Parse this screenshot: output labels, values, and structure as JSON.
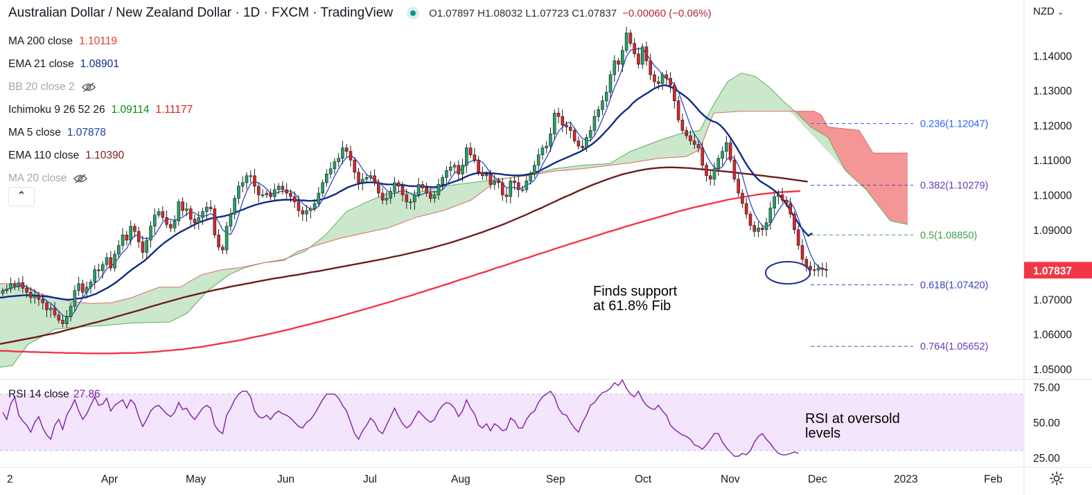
{
  "header": {
    "title": "Australian Dollar / New Zealand Dollar · 1D · FXCM · TradingView",
    "ohlc": "O1.07897 H1.08032 L1.07723 C1.07837",
    "change": "−0.00060 (−0.06%)"
  },
  "legend": [
    {
      "label": "MA 200 close",
      "value": "1.10119",
      "color": "#e53935",
      "hidden": false
    },
    {
      "label": "EMA 21 close",
      "value": "1.08901",
      "color": "#0d2a8a",
      "hidden": false
    },
    {
      "label": "BB 20 close 2",
      "value": "",
      "color": "#a3a6af",
      "hidden": true
    },
    {
      "label": "Ichimoku 9 26 52 26",
      "value": "1.09114",
      "value2": "1.11177",
      "color": "#0f8a0f",
      "color2": "#e01a1a",
      "hidden": false
    },
    {
      "label": "MA 5 close",
      "value": "1.07878",
      "color": "#1a3fa5",
      "hidden": false
    },
    {
      "label": "EMA 110 close",
      "value": "1.10390",
      "color": "#7a1e1e",
      "hidden": false
    },
    {
      "label": "MA 20 close",
      "value": "",
      "color": "#a3a6af",
      "hidden": true
    }
  ],
  "currency_label": "NZD",
  "rsi": {
    "label": "RSI 14 close",
    "value": "27.86",
    "ticks": [
      "75.00",
      "50.00",
      "25.00"
    ]
  },
  "price_axis": {
    "ticks": [
      "1.14000",
      "1.13000",
      "1.12000",
      "1.11000",
      "1.10000",
      "1.09000",
      "1.07000",
      "1.06000",
      "1.05000"
    ],
    "last_price": "1.07837"
  },
  "time_axis": [
    "2",
    "Apr",
    "May",
    "Jun",
    "Jul",
    "Aug",
    "Sep",
    "Oct",
    "Nov",
    "Dec",
    "2023",
    "Feb"
  ],
  "fib_levels": [
    {
      "label": "0.236(1.12047)",
      "value": 1.12047,
      "color": "#2962ff"
    },
    {
      "label": "0.382(1.10279)",
      "value": 1.10279,
      "color": "#673ab7"
    },
    {
      "label": "0.5(1.08850)",
      "value": 1.0885,
      "color": "#43a047"
    },
    {
      "label": "0.618(1.07420)",
      "value": 1.0742,
      "color": "#3f3fbf"
    },
    {
      "label": "0.764(1.05652)",
      "value": 1.05652,
      "color": "#673ab7"
    }
  ],
  "annotations": {
    "support_line1": "Finds support",
    "support_line2": "at 61.8% Fib",
    "rsi_line1": "RSI at oversold",
    "rsi_line2": "levels"
  },
  "colors": {
    "up": "#26a169",
    "down": "#d8262e",
    "ma200": "#f23645",
    "ema21": "#0d2a8a",
    "ma5": "#2d49c8",
    "ema110": "#6b1d1d",
    "rsi": "#7e1fa3",
    "cloud_green": "#a5d6a7",
    "cloud_red": "#ef9a9a"
  },
  "chart_data": {
    "type": "candlestick",
    "title": "Australian Dollar / New Zealand Dollar · 1D · FXCM",
    "ylim": [
      1.045,
      1.148
    ],
    "rsi_ylim": [
      20,
      82
    ],
    "close": [
      1.0725,
      1.073,
      1.0745,
      1.0738,
      1.0748,
      1.0732,
      1.072,
      1.0705,
      1.071,
      1.07,
      1.069,
      1.067,
      1.0675,
      1.0655,
      1.064,
      1.063,
      1.065,
      1.068,
      1.0725,
      1.0745,
      1.072,
      1.0735,
      1.075,
      1.0785,
      1.0782,
      1.08,
      1.082,
      1.079,
      1.083,
      1.0855,
      1.0885,
      1.087,
      1.091,
      1.0895,
      1.0865,
      1.0835,
      1.087,
      1.091,
      1.0942,
      1.0952,
      1.0935,
      1.0915,
      1.0905,
      1.0925,
      1.098,
      1.0955,
      1.096,
      1.093,
      1.092,
      1.0935,
      1.0952,
      1.0965,
      1.096,
      1.0885,
      1.085,
      1.0842,
      1.091,
      1.0945,
      1.099,
      1.1025,
      1.1035,
      1.1055,
      1.1055,
      1.1025,
      1.1,
      1.1,
      1.1005,
      1.0995,
      1.1015,
      1.1025,
      1.1015,
      1.1005,
      1.0995,
      1.098,
      1.0955,
      1.0945,
      1.0955,
      1.096,
      1.0975,
      1.1005,
      1.1035,
      1.106,
      1.1075,
      1.1095,
      1.1105,
      1.1135,
      1.1125,
      1.11,
      1.1065,
      1.1035,
      1.1045,
      1.105,
      1.1055,
      1.1035,
      1.1005,
      1.0985,
      1.099,
      1.101,
      1.1035,
      1.1025,
      1.1,
      1.098,
      1.098,
      1.1,
      1.103,
      1.102,
      1.1005,
      1.099,
      1.1,
      1.103,
      1.105,
      1.107,
      1.108,
      1.1085,
      1.106,
      1.1085,
      1.1135,
      1.1115,
      1.11,
      1.1065,
      1.1055,
      1.106,
      1.103,
      1.104,
      1.1035,
      1.1,
      1.0995,
      1.104,
      1.1035,
      1.1015,
      1.1015,
      1.104,
      1.106,
      1.1085,
      1.1115,
      1.1135,
      1.114,
      1.1175,
      1.1235,
      1.1225,
      1.12,
      1.1195,
      1.1185,
      1.1155,
      1.114,
      1.1135,
      1.1165,
      1.1185,
      1.1225,
      1.1245,
      1.127,
      1.1295,
      1.1345,
      1.1385,
      1.1375,
      1.1415,
      1.1465,
      1.1435,
      1.1405,
      1.1375,
      1.1425,
      1.1385,
      1.1345,
      1.1325,
      1.132,
      1.1345,
      1.1335,
      1.1315,
      1.127,
      1.1215,
      1.1185,
      1.117,
      1.1155,
      1.1145,
      1.1135,
      1.1085,
      1.1055,
      1.1045,
      1.1075,
      1.1105,
      1.1125,
      1.115,
      1.11,
      1.1045,
      1.1005,
      1.0975,
      1.0945,
      1.0912,
      1.0895,
      1.0905,
      1.09,
      1.092,
      1.0962,
      1.0995,
      1.1,
      1.0985,
      1.0975,
      1.0945,
      1.09,
      1.0855,
      1.0815,
      1.0795,
      1.0785,
      1.0784,
      1.079,
      1.0786,
      1.0784
    ],
    "ma200": [
      1.0552,
      1.0552,
      1.0551,
      1.055,
      1.055,
      1.0549,
      1.0549,
      1.0548,
      1.0548,
      1.0547,
      1.0547,
      1.0546,
      1.0546,
      1.0546,
      1.0545,
      1.0545,
      1.0545,
      1.0545,
      1.0545,
      1.0545,
      1.0546,
      1.0546,
      1.0546,
      1.0547,
      1.0548,
      1.0549,
      1.055,
      1.0552,
      1.0553,
      1.0555,
      1.0556,
      1.0559,
      1.0561,
      1.0563,
      1.0566,
      1.0569,
      1.0572,
      1.0575,
      1.0578,
      1.0581,
      1.0584,
      1.0588,
      1.0592,
      1.0595,
      1.0599,
      1.0603,
      1.0607,
      1.0611,
      1.0615,
      1.062,
      1.0624,
      1.0628,
      1.0633,
      1.0637,
      1.0642,
      1.0646,
      1.0651,
      1.0656,
      1.0661,
      1.0666,
      1.0671,
      1.0676,
      1.0681,
      1.0686,
      1.0691,
      1.0696,
      1.0702,
      1.0707,
      1.0712,
      1.0718,
      1.0723,
      1.0729,
      1.0734,
      1.074,
      1.0745,
      1.0751,
      1.0757,
      1.0762,
      1.0768,
      1.0774,
      1.0779,
      1.0785,
      1.0791,
      1.0796,
      1.0802,
      1.0808,
      1.0814,
      1.0819,
      1.0825,
      1.0831,
      1.0836,
      1.0842,
      1.0848,
      1.0853,
      1.0859,
      1.0864,
      1.087,
      1.0875,
      1.0881,
      1.0886,
      1.0892,
      1.0897,
      1.0902,
      1.0908,
      1.0913,
      1.0918,
      1.0923,
      1.0928,
      1.0933,
      1.0938,
      1.0943,
      1.0948,
      1.0953,
      1.0957,
      1.0962,
      1.0966,
      1.097,
      1.0974,
      1.0978,
      1.0982,
      1.0986,
      1.0989,
      1.0992,
      1.0995,
      1.0998,
      1.1001,
      1.1003,
      1.1005,
      1.1007,
      1.1008,
      1.1009,
      1.101,
      1.1011
    ],
    "ema110": [
      1.0572,
      1.0576,
      1.058,
      1.0584,
      1.0588,
      1.0592,
      1.0597,
      1.0601,
      1.0606,
      1.0612,
      1.0617,
      1.0623,
      1.0629,
      1.0634,
      1.064,
      1.0646,
      1.0652,
      1.0658,
      1.0664,
      1.067,
      1.0677,
      1.0683,
      1.0689,
      1.0695,
      1.0701,
      1.0707,
      1.0712,
      1.0717,
      1.0722,
      1.0727,
      1.0731,
      1.0736,
      1.074,
      1.0744,
      1.0748,
      1.0752,
      1.0756,
      1.076,
      1.0763,
      1.0767,
      1.077,
      1.0774,
      1.0778,
      1.0781,
      1.0785,
      1.0789,
      1.0793,
      1.0797,
      1.0801,
      1.0805,
      1.0809,
      1.0813,
      1.0817,
      1.0822,
      1.0826,
      1.0831,
      1.0836,
      1.0841,
      1.0846,
      1.0852,
      1.0858,
      1.0864,
      1.0871,
      1.0878,
      1.0885,
      1.0892,
      1.09,
      1.0908,
      1.0916,
      1.0925,
      1.0934,
      1.0943,
      1.0953,
      1.0962,
      1.0972,
      1.0982,
      1.0992,
      1.1001,
      1.1011,
      1.102,
      1.1029,
      1.1037,
      1.1045,
      1.1052,
      1.1059,
      1.1064,
      1.1069,
      1.1073,
      1.1076,
      1.1078,
      1.1079,
      1.1079,
      1.1078,
      1.1077,
      1.1075,
      1.1073,
      1.1071,
      1.1069,
      1.1067,
      1.1065,
      1.1062,
      1.106,
      1.1057,
      1.1055,
      1.1052,
      1.105,
      1.1047,
      1.1044,
      1.1041,
      1.1038
    ],
    "ema21": [
      1.0705,
      1.0706,
      1.0708,
      1.0709,
      1.071,
      1.0711,
      1.0712,
      1.0712,
      1.0712,
      1.0711,
      1.071,
      1.0709,
      1.0708,
      1.0706,
      1.0704,
      1.0702,
      1.07,
      1.0699,
      1.07,
      1.0702,
      1.0703,
      1.0705,
      1.0708,
      1.0712,
      1.0716,
      1.0722,
      1.0728,
      1.0734,
      1.0741,
      1.0749,
      1.0758,
      1.0767,
      1.0777,
      1.0786,
      1.0794,
      1.0802,
      1.081,
      1.082,
      1.0831,
      1.0842,
      1.0852,
      1.0862,
      1.087,
      1.0878,
      1.0886,
      1.0893,
      1.0899,
      1.0905,
      1.0911,
      1.0917,
      1.0922,
      1.0926,
      1.093,
      1.0933,
      1.0935,
      1.0937,
      1.0939,
      1.0942,
      1.0946,
      1.095,
      1.0955,
      1.0959,
      1.0964,
      1.0968,
      1.0972,
      1.0975,
      1.0978,
      1.098,
      1.0982,
      1.0984,
      1.0985,
      1.0986,
      1.0986,
      1.0986,
      1.0985,
      1.0984,
      1.0984,
      1.0983,
      1.0983,
      1.0984,
      1.0986,
      1.0989,
      1.0993,
      1.0998,
      1.1003,
      1.101,
      1.1016,
      1.1022,
      1.1026,
      1.103,
      1.1033,
      1.1035,
      1.1036,
      1.1036,
      1.1035,
      1.1033,
      1.1031,
      1.103,
      1.103,
      1.103,
      1.1029,
      1.1028,
      1.1026,
      1.1025,
      1.1025,
      1.1025,
      1.1024,
      1.1023,
      1.1022,
      1.1023,
      1.1025,
      1.1028,
      1.1032,
      1.1036,
      1.104,
      1.1044,
      1.105,
      1.1055,
      1.1059,
      1.1062,
      1.1063,
      1.1063,
      1.1063,
      1.1062,
      1.1061,
      1.106,
      1.1058,
      1.1057,
      1.1056,
      1.1056,
      1.1056,
      1.1057,
      1.1059,
      1.1062,
      1.1065,
      1.107,
      1.1076,
      1.1082,
      1.1088,
      1.1094,
      1.1099,
      1.1104,
      1.1109,
      1.1114,
      1.1119,
      1.1124,
      1.1131,
      1.1138,
      1.1146,
      1.1155,
      1.1166,
      1.1178,
      1.119,
      1.1203,
      1.1217,
      1.1229,
      1.124,
      1.1249,
      1.1262,
      1.1272,
      1.128,
      1.1287,
      1.1294,
      1.1302,
      1.1308,
      1.1313,
      1.1315,
      1.1313,
      1.1308,
      1.1301,
      1.1293,
      1.1285,
      1.1276,
      1.1264,
      1.1251,
      1.1238,
      1.1227,
      1.1218,
      1.1212,
      1.1208,
      1.12,
      1.1188,
      1.1173,
      1.1156,
      1.1138,
      1.1118,
      1.1098,
      1.108,
      1.1064,
      1.105,
      1.1039,
      1.1032,
      1.1025,
      1.1017,
      1.1008,
      1.0996,
      1.0982,
      1.0965,
      1.0946,
      1.0928,
      1.091,
      1.0895,
      1.0883,
      1.089
    ],
    "rsi": [
      57,
      52,
      63,
      68,
      55,
      51,
      48,
      43,
      50,
      54,
      46,
      41,
      38,
      48,
      52,
      45,
      55,
      60,
      66,
      58,
      52,
      56,
      62,
      68,
      62,
      63,
      67,
      58,
      62,
      64,
      66,
      60,
      66,
      63,
      54,
      47,
      52,
      58,
      61,
      62,
      59,
      56,
      54,
      57,
      64,
      59,
      60,
      55,
      52,
      56,
      60,
      62,
      60,
      48,
      44,
      42,
      55,
      60,
      66,
      70,
      72,
      72,
      68,
      58,
      54,
      53,
      55,
      52,
      56,
      58,
      56,
      55,
      53,
      50,
      47,
      46,
      50,
      52,
      56,
      61,
      66,
      70,
      70,
      70,
      67,
      62,
      58,
      50,
      42,
      38,
      44,
      48,
      53,
      50,
      44,
      42,
      48,
      54,
      60,
      54,
      49,
      46,
      48,
      53,
      58,
      55,
      52,
      50,
      52,
      58,
      62,
      64,
      63,
      60,
      54,
      58,
      66,
      60,
      56,
      48,
      46,
      49,
      44,
      49,
      47,
      44,
      45,
      53,
      51,
      46,
      46,
      52,
      56,
      58,
      64,
      68,
      70,
      72,
      68,
      60,
      56,
      55,
      50,
      46,
      43,
      50,
      55,
      62,
      64,
      68,
      71,
      72,
      74,
      78,
      76,
      80,
      74,
      70,
      68,
      72,
      66,
      62,
      60,
      59,
      62,
      58,
      55,
      48,
      45,
      43,
      41,
      40,
      38,
      34,
      33,
      31,
      34,
      38,
      42,
      42,
      36,
      32,
      29,
      26,
      26,
      28,
      27,
      30,
      36,
      40,
      42,
      38,
      35,
      31,
      28,
      27,
      27,
      28,
      29,
      28
    ]
  }
}
